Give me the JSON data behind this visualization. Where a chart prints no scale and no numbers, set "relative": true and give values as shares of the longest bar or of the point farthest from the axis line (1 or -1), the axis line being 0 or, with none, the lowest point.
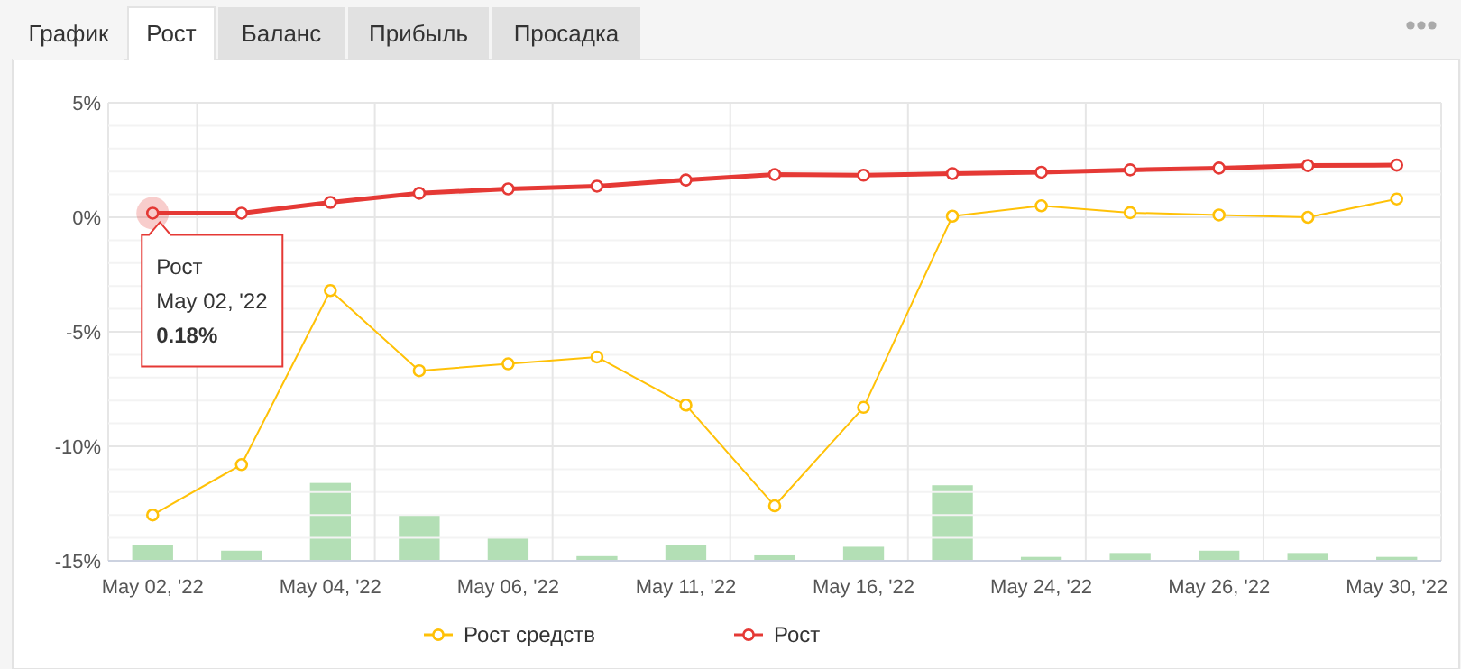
{
  "chart_data": [
    {
      "type": "line",
      "categories": [
        "May 02, '22",
        null,
        "May 04, '22",
        null,
        "May 06, '22",
        null,
        "May 11, '22",
        null,
        "May 16, '22",
        null,
        "May 24, '22",
        null,
        "May 26, '22",
        null,
        "May 30, '22"
      ],
      "ylim": [
        -15,
        5
      ],
      "yticks": [
        {
          "value": 5,
          "label": "5%"
        },
        {
          "value": 0,
          "label": "0%"
        },
        {
          "value": -5,
          "label": "-5%"
        },
        {
          "value": -10,
          "label": "-10%"
        },
        {
          "value": -15,
          "label": "-15%"
        }
      ],
      "grid": true,
      "legend": "bottom",
      "marker": "circle",
      "series": [
        {
          "name": "Рост средств",
          "color": "#ffc107",
          "values": [
            -13.0,
            -10.8,
            -3.2,
            -6.7,
            -6.4,
            -6.1,
            -8.2,
            -12.6,
            -8.3,
            0.05,
            0.5,
            0.2,
            0.1,
            0.0,
            0.8
          ]
        },
        {
          "name": "Рост",
          "color": "#e53935",
          "values": [
            0.18,
            0.18,
            0.65,
            1.05,
            1.24,
            1.36,
            1.63,
            1.87,
            1.84,
            1.91,
            1.97,
            2.07,
            2.15,
            2.26,
            2.28
          ]
        }
      ],
      "annotations": [
        "График",
        "Рост",
        "Баланс",
        "Прибыль",
        "Просадка",
        {
          "text": "Рост\nMay 02, '22\n0.18%",
          "x": "May 02, '22",
          "y": 0.18
        }
      ]
    },
    {
      "type": "bar",
      "relative": true,
      "categories": [
        null,
        null,
        null,
        null,
        null,
        null,
        null,
        null,
        null,
        null,
        null,
        null,
        null,
        null,
        null
      ],
      "color": "#b3dfb5",
      "values": [
        0.2,
        0.13,
        1,
        0.58,
        0.29,
        0.06,
        0.2,
        0.07,
        0.18,
        0.97,
        0.05,
        0.1,
        0.13,
        0.1,
        0.05
      ]
    }
  ]
}
